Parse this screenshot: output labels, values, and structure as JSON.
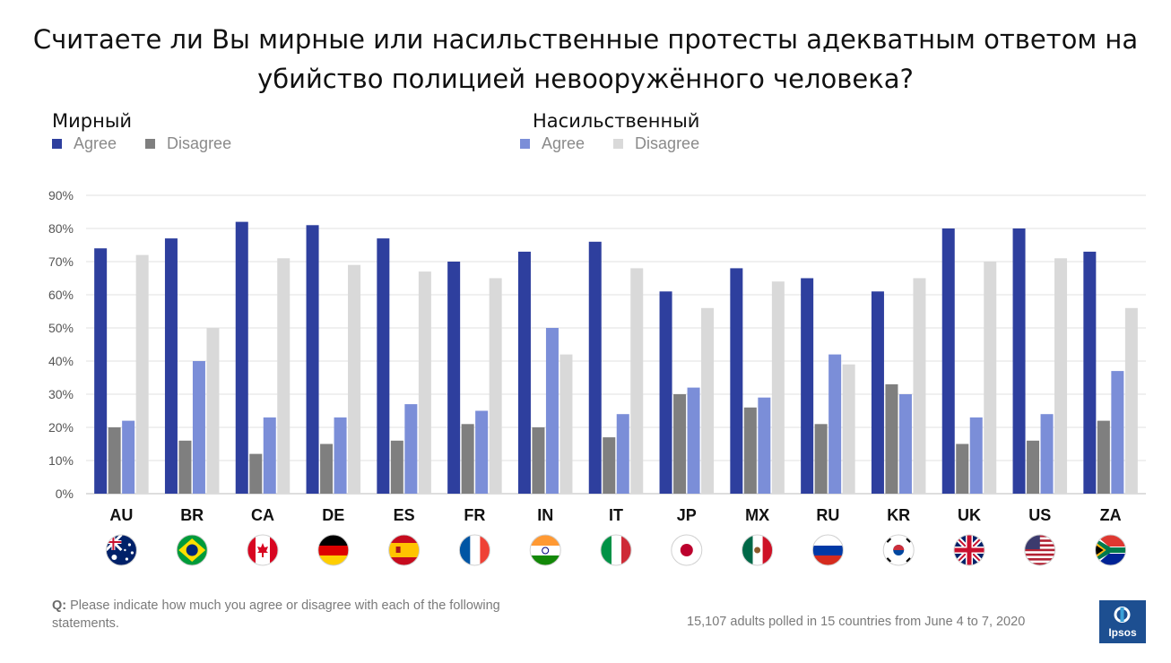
{
  "title_line1": "Считаете ли Вы мирные или насильственные протесты адекватным ответом на",
  "title_line2": "убийство полицией невооружённого человека?",
  "legend": {
    "peaceful_title": "Мирный",
    "violent_title": "Насильственный",
    "agree": "Agree",
    "disagree": "Disagree"
  },
  "colors": {
    "peaceful_agree": "#2e3f9e",
    "peaceful_disagree": "#7f7f7f",
    "violent_agree": "#7b8ed8",
    "violent_disagree": "#d9d9d9"
  },
  "chart_data": {
    "type": "bar",
    "categories": [
      "AU",
      "BR",
      "CA",
      "DE",
      "ES",
      "FR",
      "IN",
      "IT",
      "JP",
      "MX",
      "RU",
      "KR",
      "UK",
      "US",
      "ZA"
    ],
    "series": [
      {
        "name": "Мирный Agree",
        "values": [
          74,
          77,
          82,
          81,
          77,
          70,
          73,
          76,
          61,
          68,
          65,
          61,
          80,
          80,
          73
        ]
      },
      {
        "name": "Мирный Disagree",
        "values": [
          20,
          16,
          12,
          15,
          16,
          21,
          20,
          17,
          30,
          26,
          21,
          33,
          15,
          16,
          22
        ]
      },
      {
        "name": "Насильственный Agree",
        "values": [
          22,
          40,
          23,
          23,
          27,
          25,
          50,
          24,
          32,
          29,
          42,
          30,
          23,
          24,
          37
        ]
      },
      {
        "name": "Насильственный Disagree",
        "values": [
          72,
          50,
          71,
          69,
          67,
          65,
          42,
          68,
          56,
          64,
          39,
          65,
          70,
          71,
          56
        ]
      }
    ],
    "ylim": [
      0,
      90
    ],
    "yticks": [
      "0%",
      "10%",
      "20%",
      "30%",
      "40%",
      "50%",
      "60%",
      "70%",
      "80%",
      "90%"
    ],
    "grid": true,
    "legend_position": "top-left"
  },
  "flag_icons": [
    "australia-flag-icon",
    "brazil-flag-icon",
    "canada-flag-icon",
    "germany-flag-icon",
    "spain-flag-icon",
    "france-flag-icon",
    "india-flag-icon",
    "italy-flag-icon",
    "japan-flag-icon",
    "mexico-flag-icon",
    "russia-flag-icon",
    "south-korea-flag-icon",
    "uk-flag-icon",
    "usa-flag-icon",
    "south-africa-flag-icon"
  ],
  "footer": {
    "q_label": "Q:",
    "q_text": "Please indicate how much you agree or disagree with each of the following statements.",
    "note": "15,107 adults polled in 15 countries from June 4 to 7, 2020"
  },
  "logo_text": "Ipsos"
}
